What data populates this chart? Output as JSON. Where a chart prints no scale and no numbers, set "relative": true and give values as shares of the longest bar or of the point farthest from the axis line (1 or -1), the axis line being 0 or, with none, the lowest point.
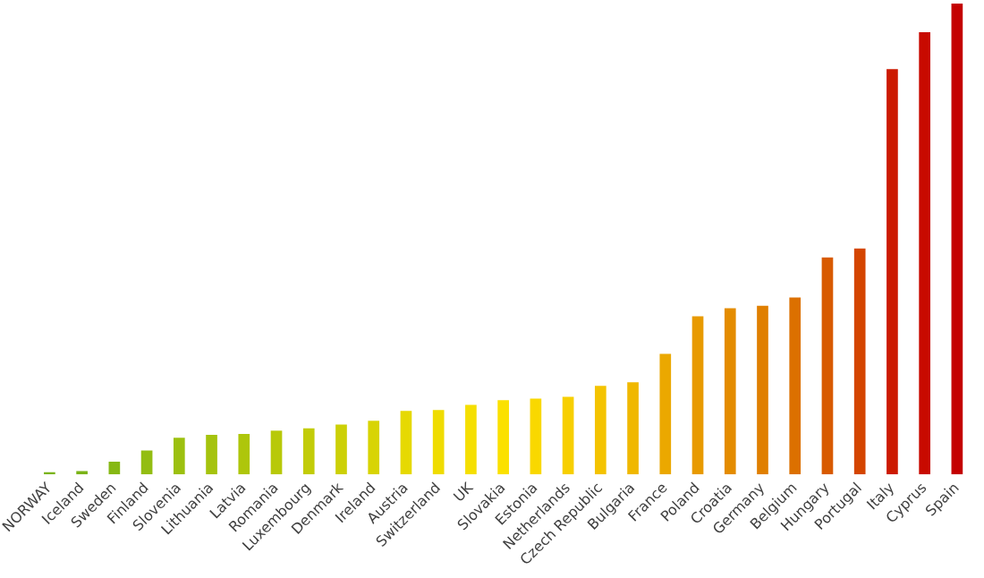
{
  "chart_data": {
    "type": "bar",
    "relative": true,
    "grid": false,
    "legend": false,
    "categories": [
      "NORWAY",
      "Iceland",
      "Sweden",
      "Finland",
      "Slovenia",
      "Lithuania",
      "Latvia",
      "Romania",
      "Luxembourg",
      "Denmark",
      "Ireland",
      "Austria",
      "Switzerland",
      "UK",
      "Slovakia",
      "Estonia",
      "Netherlands",
      "Czech Republic",
      "Bulgaria",
      "France",
      "Poland",
      "Croatia",
      "Germany",
      "Belgium",
      "Hungary",
      "Portugal",
      "Italy",
      "Cyprus",
      "Spain"
    ],
    "values": [
      0.005,
      0.007,
      0.027,
      0.051,
      0.078,
      0.084,
      0.086,
      0.093,
      0.098,
      0.106,
      0.114,
      0.135,
      0.137,
      0.148,
      0.158,
      0.161,
      0.165,
      0.188,
      0.196,
      0.256,
      0.336,
      0.353,
      0.358,
      0.376,
      0.461,
      0.48,
      0.861,
      0.939,
      1
    ],
    "colors": [
      "#7ab317",
      "#7ab317",
      "#86b814",
      "#93bd12",
      "#9cc00f",
      "#a5c30d",
      "#aec60b",
      "#b8c909",
      "#c2cc08",
      "#ccd006",
      "#d8d404",
      "#e6d902",
      "#efdc01",
      "#f5df00",
      "#fbe100",
      "#f9d800",
      "#f7cf00",
      "#f4c300",
      "#f0b800",
      "#eba800",
      "#e89a00",
      "#e48c00",
      "#e07f00",
      "#dc7000",
      "#d85a00",
      "#d44500",
      "#cc1a00",
      "#c80a00",
      "#c40000"
    ]
  }
}
